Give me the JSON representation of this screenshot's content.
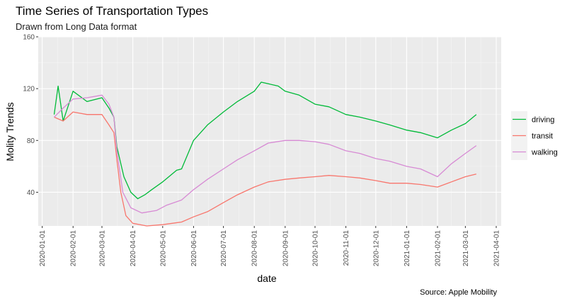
{
  "chart_data": {
    "type": "line",
    "title": "Time Series of Transportation Types",
    "subtitle": "Drawn from Long Data format",
    "xlabel": "date",
    "ylabel": "Molity Trends",
    "caption": "Source: Apple Mobility",
    "x_ticks": [
      "2020-01-01",
      "2020-02-01",
      "2020-03-01",
      "2020-04-01",
      "2020-05-01",
      "2020-06-01",
      "2020-07-01",
      "2020-08-01",
      "2020-09-01",
      "2020-10-01",
      "2020-11-01",
      "2020-12-01",
      "2021-01-01",
      "2021-02-01",
      "2021-03-01",
      "2021-04-01"
    ],
    "y_ticks": [
      40,
      80,
      120,
      160
    ],
    "xlim": [
      "2019-12-28",
      "2021-04-06"
    ],
    "ylim": [
      14,
      160
    ],
    "grid": true,
    "legend_position": "right",
    "series": [
      {
        "name": "driving",
        "color": "#00BA38",
        "points": [
          [
            "2020-01-13",
            100
          ],
          [
            "2020-01-17",
            122
          ],
          [
            "2020-01-22",
            95
          ],
          [
            "2020-02-01",
            118
          ],
          [
            "2020-02-15",
            110
          ],
          [
            "2020-03-01",
            113
          ],
          [
            "2020-03-08",
            105
          ],
          [
            "2020-03-13",
            98
          ],
          [
            "2020-03-16",
            75
          ],
          [
            "2020-03-23",
            52
          ],
          [
            "2020-03-30",
            40
          ],
          [
            "2020-04-06",
            35
          ],
          [
            "2020-04-13",
            38
          ],
          [
            "2020-04-20",
            42
          ],
          [
            "2020-05-01",
            48
          ],
          [
            "2020-05-15",
            57
          ],
          [
            "2020-05-20",
            58
          ],
          [
            "2020-06-01",
            80
          ],
          [
            "2020-06-15",
            92
          ],
          [
            "2020-07-01",
            102
          ],
          [
            "2020-07-15",
            110
          ],
          [
            "2020-08-01",
            118
          ],
          [
            "2020-08-08",
            125
          ],
          [
            "2020-08-25",
            122
          ],
          [
            "2020-09-01",
            118
          ],
          [
            "2020-09-15",
            115
          ],
          [
            "2020-10-01",
            108
          ],
          [
            "2020-10-15",
            106
          ],
          [
            "2020-11-01",
            100
          ],
          [
            "2020-11-15",
            98
          ],
          [
            "2020-12-01",
            95
          ],
          [
            "2020-12-15",
            92
          ],
          [
            "2021-01-01",
            88
          ],
          [
            "2021-01-15",
            86
          ],
          [
            "2021-02-01",
            82
          ],
          [
            "2021-02-15",
            88
          ],
          [
            "2021-03-01",
            93
          ],
          [
            "2021-03-12",
            100
          ]
        ]
      },
      {
        "name": "transit",
        "color": "#F8766D",
        "points": [
          [
            "2020-01-13",
            98
          ],
          [
            "2020-01-22",
            95
          ],
          [
            "2020-02-01",
            102
          ],
          [
            "2020-02-15",
            100
          ],
          [
            "2020-03-01",
            100
          ],
          [
            "2020-03-08",
            92
          ],
          [
            "2020-03-13",
            86
          ],
          [
            "2020-03-16",
            65
          ],
          [
            "2020-03-20",
            40
          ],
          [
            "2020-03-25",
            22
          ],
          [
            "2020-04-01",
            16
          ],
          [
            "2020-04-15",
            14
          ],
          [
            "2020-05-01",
            15
          ],
          [
            "2020-05-20",
            17
          ],
          [
            "2020-06-01",
            21
          ],
          [
            "2020-06-15",
            25
          ],
          [
            "2020-07-01",
            32
          ],
          [
            "2020-07-15",
            38
          ],
          [
            "2020-08-01",
            44
          ],
          [
            "2020-08-15",
            48
          ],
          [
            "2020-09-01",
            50
          ],
          [
            "2020-09-15",
            51
          ],
          [
            "2020-10-01",
            52
          ],
          [
            "2020-10-15",
            53
          ],
          [
            "2020-11-01",
            52
          ],
          [
            "2020-11-15",
            51
          ],
          [
            "2020-12-01",
            49
          ],
          [
            "2020-12-15",
            47
          ],
          [
            "2021-01-01",
            47
          ],
          [
            "2021-01-15",
            46
          ],
          [
            "2021-02-01",
            44
          ],
          [
            "2021-02-15",
            48
          ],
          [
            "2021-03-01",
            52
          ],
          [
            "2021-03-12",
            54
          ]
        ]
      },
      {
        "name": "walking",
        "color": "#D78AD4",
        "points": [
          [
            "2020-01-13",
            98
          ],
          [
            "2020-01-22",
            105
          ],
          [
            "2020-02-01",
            112
          ],
          [
            "2020-02-15",
            113
          ],
          [
            "2020-03-01",
            115
          ],
          [
            "2020-03-08",
            108
          ],
          [
            "2020-03-13",
            98
          ],
          [
            "2020-03-16",
            72
          ],
          [
            "2020-03-22",
            40
          ],
          [
            "2020-03-30",
            28
          ],
          [
            "2020-04-10",
            24
          ],
          [
            "2020-04-25",
            26
          ],
          [
            "2020-05-05",
            30
          ],
          [
            "2020-05-20",
            34
          ],
          [
            "2020-06-01",
            42
          ],
          [
            "2020-06-15",
            50
          ],
          [
            "2020-07-01",
            58
          ],
          [
            "2020-07-15",
            65
          ],
          [
            "2020-08-01",
            72
          ],
          [
            "2020-08-15",
            78
          ],
          [
            "2020-09-01",
            80
          ],
          [
            "2020-09-15",
            80
          ],
          [
            "2020-10-01",
            79
          ],
          [
            "2020-10-15",
            77
          ],
          [
            "2020-11-01",
            72
          ],
          [
            "2020-11-15",
            70
          ],
          [
            "2020-12-01",
            66
          ],
          [
            "2020-12-15",
            64
          ],
          [
            "2021-01-01",
            60
          ],
          [
            "2021-01-15",
            58
          ],
          [
            "2021-02-01",
            52
          ],
          [
            "2021-02-15",
            62
          ],
          [
            "2021-03-01",
            70
          ],
          [
            "2021-03-12",
            76
          ]
        ]
      }
    ]
  }
}
